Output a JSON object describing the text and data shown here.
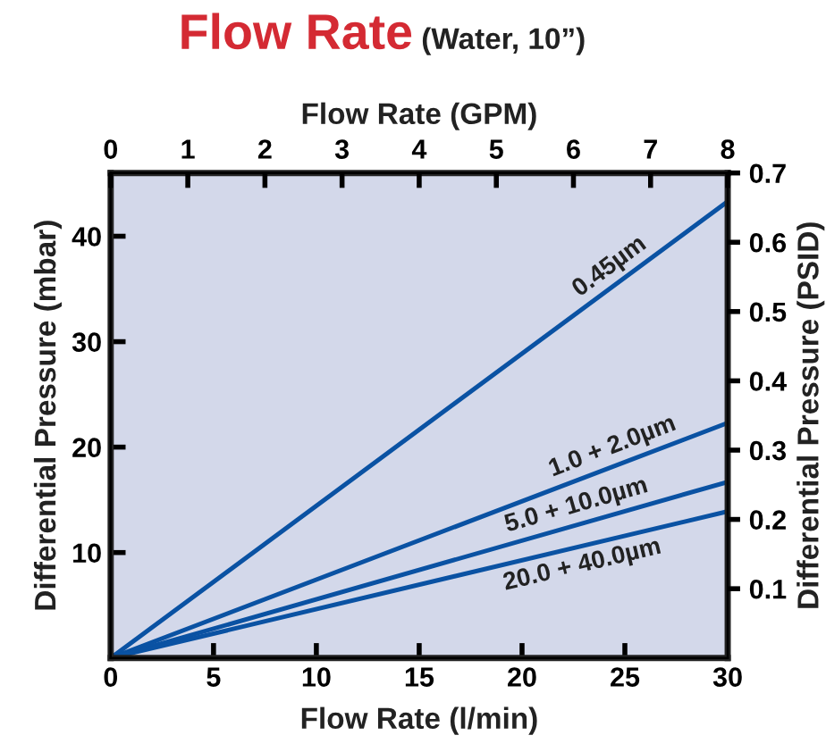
{
  "chart_data": {
    "type": "line",
    "title": "Flow Rate",
    "subtitle": "(Water, 10”)",
    "xlabel": "Flow Rate (l/min)",
    "ylabel": "Differential Pressure (mbar)",
    "y2label": "Differential Pressure (PSID)",
    "x2label": "Flow Rate (GPM)",
    "xlim": [
      0,
      30
    ],
    "xticks": [
      0,
      5,
      10,
      15,
      20,
      25,
      30
    ],
    "x2lim": [
      0,
      8
    ],
    "x2ticks": [
      0,
      1,
      2,
      3,
      4,
      5,
      6,
      7,
      8
    ],
    "ylim": [
      0,
      46
    ],
    "yticks": [
      10,
      20,
      30,
      40
    ],
    "y2lim": [
      0,
      0.7
    ],
    "y2ticks": [
      0.1,
      0.2,
      0.3,
      0.4,
      0.5,
      0.6,
      0.7
    ],
    "x": [
      0,
      30
    ],
    "grid": false,
    "marker": "none",
    "line_style": "solid",
    "series": [
      {
        "name": "0.45µm",
        "color": "#0a52a3",
        "values": [
          0,
          43.3
        ]
      },
      {
        "name": "1.0 + 2.0µm",
        "color": "#0a52a3",
        "values": [
          0,
          22.3
        ]
      },
      {
        "name": "5.0 + 10.0µm",
        "color": "#0a52a3",
        "values": [
          0,
          16.7
        ]
      },
      {
        "name": "20.0 + 40.0µm",
        "color": "#0a52a3",
        "values": [
          0,
          13.9
        ]
      }
    ]
  }
}
